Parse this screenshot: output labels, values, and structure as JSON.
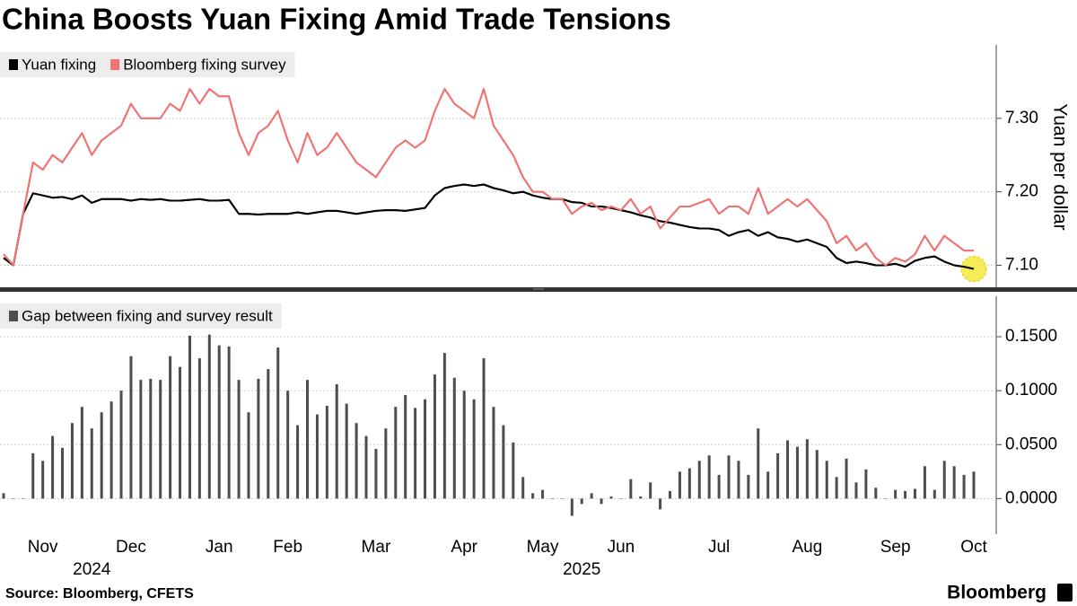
{
  "chart_data": [
    {
      "type": "line",
      "title": "China Boosts Yuan Fixing Amid Trade Tensions",
      "y_label": "Yuan per dollar",
      "ylim": [
        7.07,
        7.4
      ],
      "yticks": [
        {
          "value": 7.1,
          "label": "7.10"
        },
        {
          "value": 7.2,
          "label": "7.20"
        },
        {
          "value": 7.3,
          "label": "7.30"
        }
      ],
      "grid": true,
      "legend": "top-left",
      "series": [
        {
          "name": "Yuan fixing",
          "color": "#000000",
          "values": [
            7.11,
            7.1,
            7.17,
            7.198,
            7.195,
            7.192,
            7.193,
            7.19,
            7.195,
            7.185,
            7.19,
            7.19,
            7.19,
            7.188,
            7.19,
            7.189,
            7.19,
            7.188,
            7.188,
            7.189,
            7.19,
            7.188,
            7.188,
            7.189,
            7.17,
            7.17,
            7.169,
            7.17,
            7.17,
            7.17,
            7.172,
            7.17,
            7.172,
            7.174,
            7.174,
            7.172,
            7.17,
            7.172,
            7.174,
            7.175,
            7.175,
            7.174,
            7.176,
            7.178,
            7.195,
            7.205,
            7.208,
            7.21,
            7.208,
            7.21,
            7.205,
            7.202,
            7.198,
            7.2,
            7.195,
            7.192,
            7.19,
            7.19,
            7.186,
            7.185,
            7.18,
            7.18,
            7.178,
            7.175,
            7.172,
            7.168,
            7.165,
            7.16,
            7.158,
            7.155,
            7.152,
            7.15,
            7.15,
            7.148,
            7.14,
            7.145,
            7.148,
            7.14,
            7.145,
            7.138,
            7.136,
            7.132,
            7.135,
            7.13,
            7.125,
            7.11,
            7.103,
            7.105,
            7.103,
            7.1,
            7.1,
            7.102,
            7.098,
            7.106,
            7.11,
            7.112,
            7.105,
            7.1,
            7.098,
            7.095
          ]
        },
        {
          "name": "Bloomberg fixing survey",
          "color": "#f07272",
          "values": [
            7.115,
            7.1,
            7.17,
            7.24,
            7.23,
            7.25,
            7.24,
            7.26,
            7.28,
            7.25,
            7.27,
            7.28,
            7.29,
            7.32,
            7.3,
            7.3,
            7.3,
            7.32,
            7.31,
            7.34,
            7.32,
            7.34,
            7.33,
            7.33,
            7.28,
            7.25,
            7.28,
            7.29,
            7.31,
            7.27,
            7.24,
            7.28,
            7.25,
            7.26,
            7.28,
            7.26,
            7.24,
            7.23,
            7.22,
            7.24,
            7.26,
            7.27,
            7.26,
            7.27,
            7.31,
            7.34,
            7.32,
            7.31,
            7.3,
            7.34,
            7.29,
            7.27,
            7.25,
            7.22,
            7.2,
            7.2,
            7.19,
            7.19,
            7.17,
            7.18,
            7.185,
            7.175,
            7.18,
            7.175,
            7.19,
            7.17,
            7.18,
            7.15,
            7.165,
            7.18,
            7.18,
            7.185,
            7.19,
            7.17,
            7.18,
            7.18,
            7.17,
            7.205,
            7.17,
            7.18,
            7.19,
            7.18,
            7.19,
            7.175,
            7.16,
            7.13,
            7.14,
            7.12,
            7.13,
            7.11,
            7.1,
            7.11,
            7.105,
            7.115,
            7.14,
            7.12,
            7.14,
            7.13,
            7.12,
            7.12
          ]
        }
      ]
    },
    {
      "type": "bar",
      "ylim": [
        -0.033,
        0.1875
      ],
      "yticks": [
        {
          "value": 0,
          "label": "0.0000"
        },
        {
          "value": 0.05,
          "label": "0.0500"
        },
        {
          "value": 0.1,
          "label": "0.1000"
        },
        {
          "value": 0.15,
          "label": "0.1500"
        }
      ],
      "grid": true,
      "legend": "top-left",
      "categories": [
        null,
        null,
        null,
        null,
        "Nov",
        null,
        null,
        null,
        null,
        null,
        null,
        null,
        null,
        "Dec",
        null,
        null,
        null,
        null,
        null,
        null,
        null,
        null,
        "Jan",
        null,
        null,
        null,
        null,
        null,
        null,
        "Feb",
        null,
        null,
        null,
        null,
        null,
        null,
        null,
        null,
        "Mar",
        null,
        null,
        null,
        null,
        null,
        null,
        null,
        null,
        "Apr",
        null,
        null,
        null,
        null,
        null,
        null,
        null,
        "May",
        null,
        null,
        null,
        null,
        null,
        null,
        null,
        "Jun",
        null,
        null,
        null,
        null,
        null,
        null,
        null,
        null,
        null,
        "Jul",
        null,
        null,
        null,
        null,
        null,
        null,
        null,
        null,
        "Aug",
        null,
        null,
        null,
        null,
        null,
        null,
        null,
        null,
        "Sep",
        null,
        null,
        null,
        null,
        null,
        null,
        null,
        "Oct"
      ],
      "years": [
        null,
        null,
        null,
        null,
        null,
        null,
        null,
        null,
        null,
        "2024",
        null,
        null,
        null,
        null,
        null,
        null,
        null,
        null,
        null,
        null,
        null,
        null,
        null,
        null,
        null,
        null,
        null,
        null,
        null,
        null,
        null,
        null,
        null,
        null,
        null,
        null,
        null,
        null,
        null,
        null,
        null,
        null,
        null,
        null,
        null,
        null,
        null,
        null,
        null,
        null,
        null,
        null,
        null,
        null,
        null,
        null,
        null,
        null,
        null,
        "2025",
        null,
        null,
        null,
        null,
        null,
        null,
        null,
        null,
        null,
        null,
        null,
        null,
        null,
        null,
        null,
        null,
        null,
        null,
        null,
        null,
        null,
        null,
        null,
        null,
        null,
        null,
        null,
        null,
        null,
        null,
        null,
        null,
        null,
        null,
        null,
        null,
        null,
        null,
        null,
        null
      ],
      "series": [
        {
          "name": "Gap between fixing and survey result",
          "color": "#4d4d4d",
          "values": [
            0.005,
            0.0,
            0.0,
            0.042,
            0.035,
            0.058,
            0.047,
            0.07,
            0.085,
            0.065,
            0.08,
            0.09,
            0.1,
            0.132,
            0.11,
            0.111,
            0.11,
            0.132,
            0.122,
            0.151,
            0.13,
            0.152,
            0.142,
            0.141,
            0.11,
            0.08,
            0.111,
            0.12,
            0.14,
            0.1,
            0.068,
            0.11,
            0.078,
            0.086,
            0.106,
            0.088,
            0.07,
            0.058,
            0.046,
            0.065,
            0.085,
            0.096,
            0.084,
            0.092,
            0.115,
            0.135,
            0.112,
            0.1,
            0.092,
            0.13,
            0.085,
            0.068,
            0.052,
            0.02,
            0.005,
            0.008,
            0.0,
            0.0,
            -0.016,
            -0.005,
            0.005,
            -0.005,
            0.002,
            0.0,
            0.018,
            0.002,
            0.015,
            -0.01,
            0.007,
            0.025,
            0.028,
            0.035,
            0.04,
            0.022,
            0.04,
            0.035,
            0.022,
            0.065,
            0.025,
            0.042,
            0.054,
            0.048,
            0.055,
            0.045,
            0.035,
            0.02,
            0.037,
            0.015,
            0.027,
            0.01,
            0.0,
            0.008,
            0.007,
            0.009,
            0.03,
            0.008,
            0.035,
            0.03,
            0.022,
            0.025
          ]
        }
      ]
    }
  ],
  "footer": {
    "source": "Source: Bloomberg, CFETS",
    "brand": "Bloomberg"
  }
}
